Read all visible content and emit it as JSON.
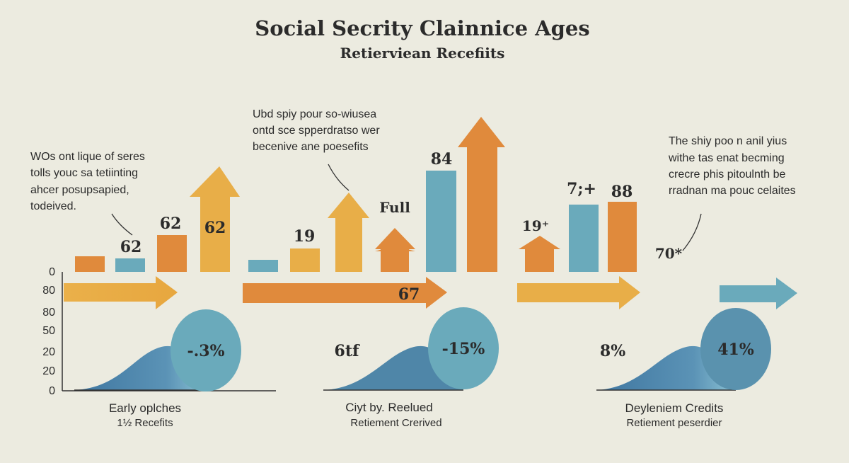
{
  "header": {
    "title": "Social Secrity Clainnice Ages",
    "subtitle": "Retierviean Recefiits"
  },
  "colors": {
    "background": "#ecebe0",
    "orange": "#e08a3c",
    "yellow": "#e8ae48",
    "blue": "#6aaabb",
    "dark_blue": "#4f86a8",
    "text": "#2b2b2b"
  },
  "axis_ticks": [
    "0",
    "80",
    "80",
    "50",
    "20",
    "20",
    "0"
  ],
  "notes": {
    "left": [
      "WOs ont lique of seres",
      "tolls youc sa tetiinting",
      "ahcer posupsapied,",
      "todeived."
    ],
    "middle": [
      "Ubd spiy pour so-wiusea",
      "ontd sce spperdratso wer",
      "becenive ane poesefits"
    ],
    "right": [
      "The shiy poo n anil yius",
      "withe tas enat becming",
      "crecre phis pitoulnth be",
      "rradnan ma pouc celaites"
    ]
  },
  "bar_labels": {
    "blue1": "62",
    "orange1": "62",
    "arrow1": "62",
    "yellow2": "19",
    "full": "Full",
    "blue3": "84",
    "arrow4": "19⁺",
    "blue4": "7;+",
    "orange4": "88",
    "seventy": "70*"
  },
  "timeline": {
    "mid_label": "67"
  },
  "sections": [
    {
      "side_label": "",
      "circle_value": "-.3%",
      "caption": [
        "Early oplches",
        "1½ Recefits"
      ]
    },
    {
      "side_label": "6tf",
      "circle_value": "-15%",
      "caption": [
        "Ciyt by. Reelued",
        "Retiement Crerived"
      ]
    },
    {
      "side_label": "8%",
      "circle_value": "41%",
      "caption": [
        "Deyleniem Credits",
        "Retiement peserdier"
      ]
    }
  ],
  "icons": [
    "arrow-up-icon",
    "arrow-right-icon"
  ]
}
